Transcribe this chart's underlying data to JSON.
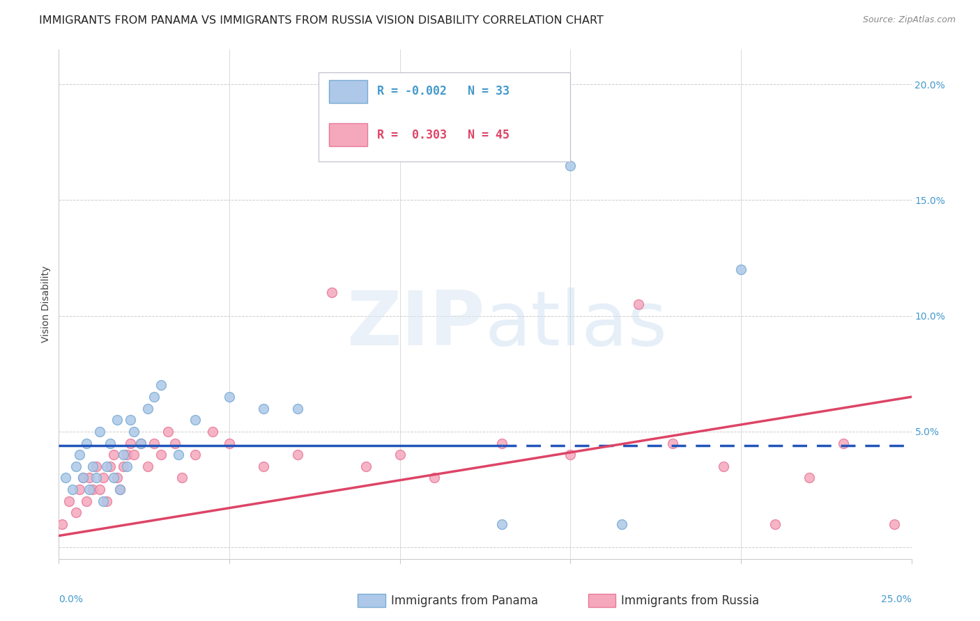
{
  "title": "IMMIGRANTS FROM PANAMA VS IMMIGRANTS FROM RUSSIA VISION DISABILITY CORRELATION CHART",
  "source": "Source: ZipAtlas.com",
  "ylabel": "Vision Disability",
  "y_ticks": [
    0.0,
    0.05,
    0.1,
    0.15,
    0.2
  ],
  "y_tick_labels": [
    "",
    "5.0%",
    "10.0%",
    "15.0%",
    "20.0%"
  ],
  "xlim": [
    0.0,
    0.25
  ],
  "ylim": [
    -0.005,
    0.215
  ],
  "panama_color": "#adc8e8",
  "russia_color": "#f5a8bc",
  "panama_edge_color": "#7aacd4",
  "russia_edge_color": "#e8789a",
  "panama_line_color": "#2255bb",
  "russia_line_color": "#dd4466",
  "legend_panama_label": "Immigrants from Panama",
  "legend_russia_label": "Immigrants from Russia",
  "R_panama": -0.002,
  "N_panama": 33,
  "R_russia": 0.303,
  "N_russia": 45,
  "panama_x": [
    0.002,
    0.004,
    0.005,
    0.006,
    0.007,
    0.008,
    0.009,
    0.01,
    0.011,
    0.012,
    0.013,
    0.014,
    0.015,
    0.016,
    0.017,
    0.018,
    0.019,
    0.02,
    0.021,
    0.022,
    0.024,
    0.026,
    0.028,
    0.03,
    0.035,
    0.04,
    0.05,
    0.06,
    0.07,
    0.13,
    0.15,
    0.165,
    0.2
  ],
  "panama_y": [
    0.03,
    0.025,
    0.035,
    0.04,
    0.03,
    0.045,
    0.025,
    0.035,
    0.03,
    0.05,
    0.02,
    0.035,
    0.045,
    0.03,
    0.055,
    0.025,
    0.04,
    0.035,
    0.055,
    0.05,
    0.045,
    0.06,
    0.065,
    0.07,
    0.04,
    0.055,
    0.065,
    0.06,
    0.06,
    0.01,
    0.165,
    0.01,
    0.12
  ],
  "russia_x": [
    0.001,
    0.003,
    0.005,
    0.006,
    0.007,
    0.008,
    0.009,
    0.01,
    0.011,
    0.012,
    0.013,
    0.014,
    0.015,
    0.016,
    0.017,
    0.018,
    0.019,
    0.02,
    0.021,
    0.022,
    0.024,
    0.026,
    0.028,
    0.03,
    0.032,
    0.034,
    0.036,
    0.04,
    0.045,
    0.05,
    0.06,
    0.07,
    0.08,
    0.09,
    0.1,
    0.11,
    0.13,
    0.15,
    0.17,
    0.18,
    0.195,
    0.21,
    0.22,
    0.23,
    0.245
  ],
  "russia_y": [
    0.01,
    0.02,
    0.015,
    0.025,
    0.03,
    0.02,
    0.03,
    0.025,
    0.035,
    0.025,
    0.03,
    0.02,
    0.035,
    0.04,
    0.03,
    0.025,
    0.035,
    0.04,
    0.045,
    0.04,
    0.045,
    0.035,
    0.045,
    0.04,
    0.05,
    0.045,
    0.03,
    0.04,
    0.05,
    0.045,
    0.035,
    0.04,
    0.11,
    0.035,
    0.04,
    0.03,
    0.045,
    0.04,
    0.105,
    0.045,
    0.035,
    0.01,
    0.03,
    0.045,
    0.01
  ],
  "background_color": "#ffffff",
  "grid_color": "#cccccc",
  "title_fontsize": 11.5,
  "axis_label_fontsize": 10,
  "tick_fontsize": 10,
  "legend_fontsize": 12,
  "marker_size": 100,
  "panama_line_y0": 0.044,
  "panama_line_y1": 0.044,
  "russia_line_y0": 0.005,
  "russia_line_y1": 0.065
}
